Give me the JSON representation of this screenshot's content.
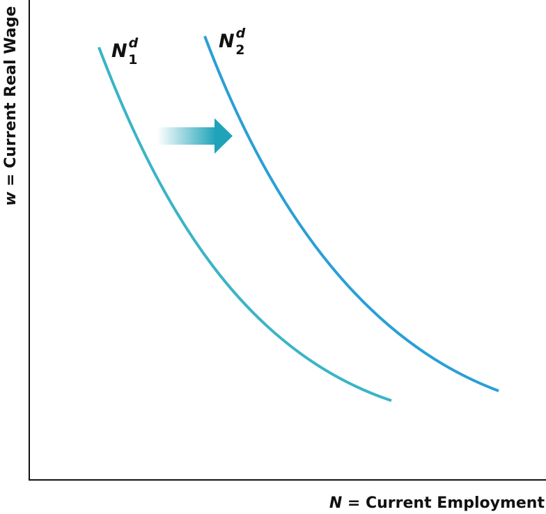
{
  "axes": {
    "x_label": {
      "symbol": "N",
      "text": " = Current Employment"
    },
    "y_label": {
      "symbol": "w",
      "text": " = Current Real Wage"
    }
  },
  "curves": [
    {
      "symbol": "N",
      "subscript": "1",
      "superscript": "d"
    },
    {
      "symbol": "N",
      "subscript": "2",
      "superscript": "d"
    }
  ]
}
